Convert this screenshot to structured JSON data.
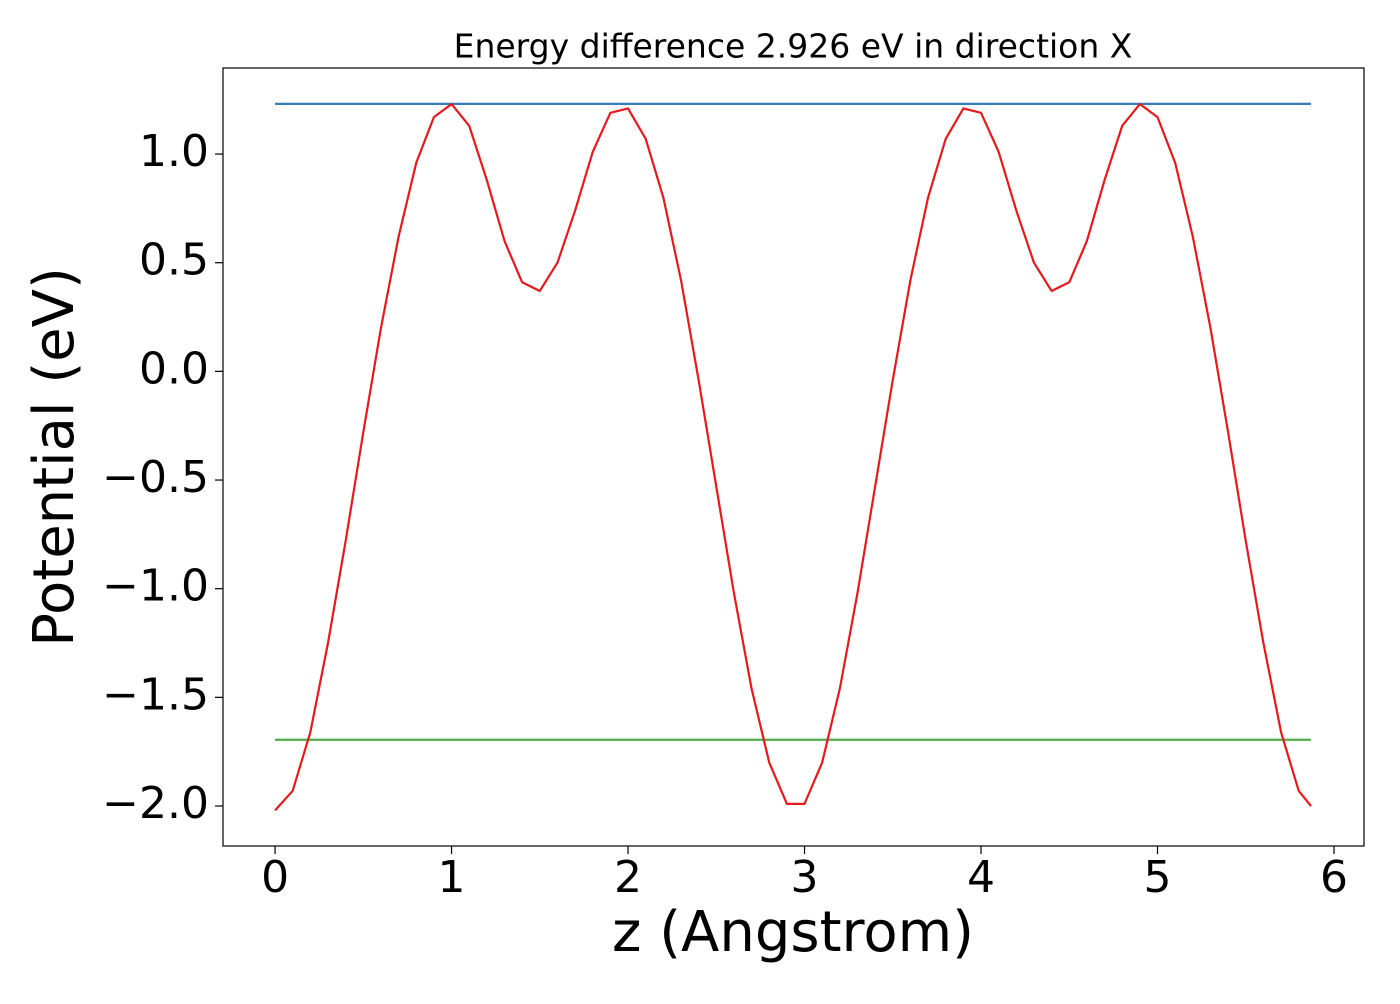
{
  "chart_data": {
    "type": "line",
    "title": "Energy difference 2.926 eV in direction X",
    "xlabel": "z (Angstrom)",
    "ylabel": "Potential (eV)",
    "xlim": [
      -0.295,
      6.17
    ],
    "ylim": [
      -2.184,
      1.396
    ],
    "xticks": [
      0,
      1,
      2,
      3,
      4,
      5,
      6
    ],
    "yticks": [
      {
        "value": -2.0,
        "label": "−2.0"
      },
      {
        "value": -1.5,
        "label": "−1.5"
      },
      {
        "value": -1.0,
        "label": "−1.0"
      },
      {
        "value": -0.5,
        "label": "−0.5"
      },
      {
        "value": 0.0,
        "label": "0.0"
      },
      0.5,
      {
        "value": 1.0,
        "label": "1.0"
      }
    ],
    "grid": false,
    "series": [
      {
        "color": "#377eb8",
        "x": [
          0,
          5.87
        ],
        "values": [
          1.231,
          1.231
        ]
      },
      {
        "color": "#4daf4a",
        "x": [
          0,
          5.87
        ],
        "values": [
          -1.695,
          -1.695
        ]
      },
      {
        "color": "#e41a1c",
        "x": [
          0,
          0.1,
          0.2,
          0.3,
          0.4,
          0.5,
          0.6,
          0.7,
          0.8,
          0.9,
          1.0,
          1.1,
          1.2,
          1.3,
          1.4,
          1.5,
          1.6,
          1.7,
          1.8,
          1.9,
          2.0,
          2.1,
          2.2,
          2.3,
          2.4,
          2.5,
          2.6,
          2.7,
          2.8,
          2.9,
          3.0,
          3.1,
          3.2,
          3.3,
          3.4,
          3.5,
          3.6,
          3.7,
          3.8,
          3.9,
          4.0,
          4.1,
          4.2,
          4.3,
          4.4,
          4.5,
          4.6,
          4.7,
          4.8,
          4.9,
          5.0,
          5.1,
          5.2,
          5.3,
          5.4,
          5.5,
          5.6,
          5.7,
          5.8,
          5.87
        ],
        "values": [
          -2.02,
          -1.93,
          -1.66,
          -1.25,
          -0.78,
          -0.28,
          0.2,
          0.62,
          0.96,
          1.17,
          1.23,
          1.13,
          0.88,
          0.6,
          0.41,
          0.37,
          0.5,
          0.74,
          1.01,
          1.19,
          1.21,
          1.07,
          0.8,
          0.42,
          -0.04,
          -0.53,
          -1.02,
          -1.46,
          -1.8,
          -1.99,
          -1.99,
          -1.8,
          -1.46,
          -1.02,
          -0.53,
          -0.04,
          0.42,
          0.8,
          1.07,
          1.21,
          1.19,
          1.01,
          0.74,
          0.5,
          0.37,
          0.41,
          0.6,
          0.88,
          1.13,
          1.23,
          1.17,
          0.96,
          0.62,
          0.2,
          -0.28,
          -0.78,
          -1.25,
          -1.66,
          -1.93,
          -2.0
        ]
      }
    ]
  }
}
